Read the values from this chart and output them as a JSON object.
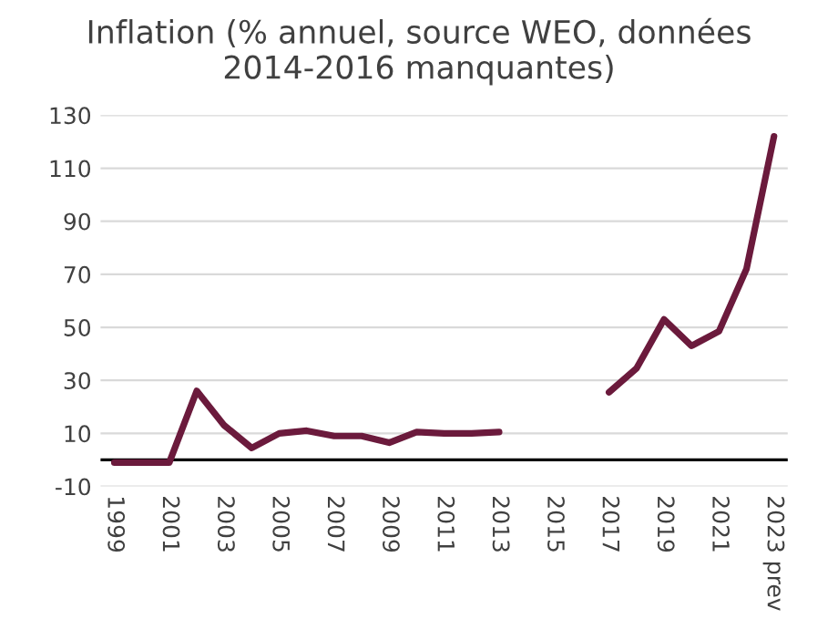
{
  "chart_data": {
    "type": "line",
    "title": "Inflation (% annuel, source WEO, données\n2014-2016 manquantes)",
    "categories": [
      "1999",
      null,
      "2001",
      null,
      "2003",
      null,
      "2005",
      null,
      "2007",
      null,
      "2009",
      null,
      "2011",
      null,
      "2013",
      null,
      "2015",
      null,
      "2017",
      null,
      "2019",
      null,
      "2021",
      null,
      "2023 prev"
    ],
    "series": [
      {
        "color": "#6b1a3c",
        "values": [
          -1,
          -1,
          -1,
          26,
          13,
          4.5,
          10,
          11,
          9,
          9,
          6.5,
          10.5,
          10,
          10,
          10.5,
          null,
          null,
          null,
          25.5,
          34.5,
          53,
          43,
          48.5,
          72,
          122
        ]
      }
    ],
    "ylim": [
      -10,
      130
    ],
    "yticks": [
      -10,
      10,
      30,
      50,
      70,
      90,
      110,
      130
    ],
    "grid": "y",
    "legend": false,
    "marker": "none",
    "line_style": "solid",
    "ref_lines": [
      {
        "axis": "y",
        "value": 0,
        "color": "#000000"
      }
    ]
  }
}
